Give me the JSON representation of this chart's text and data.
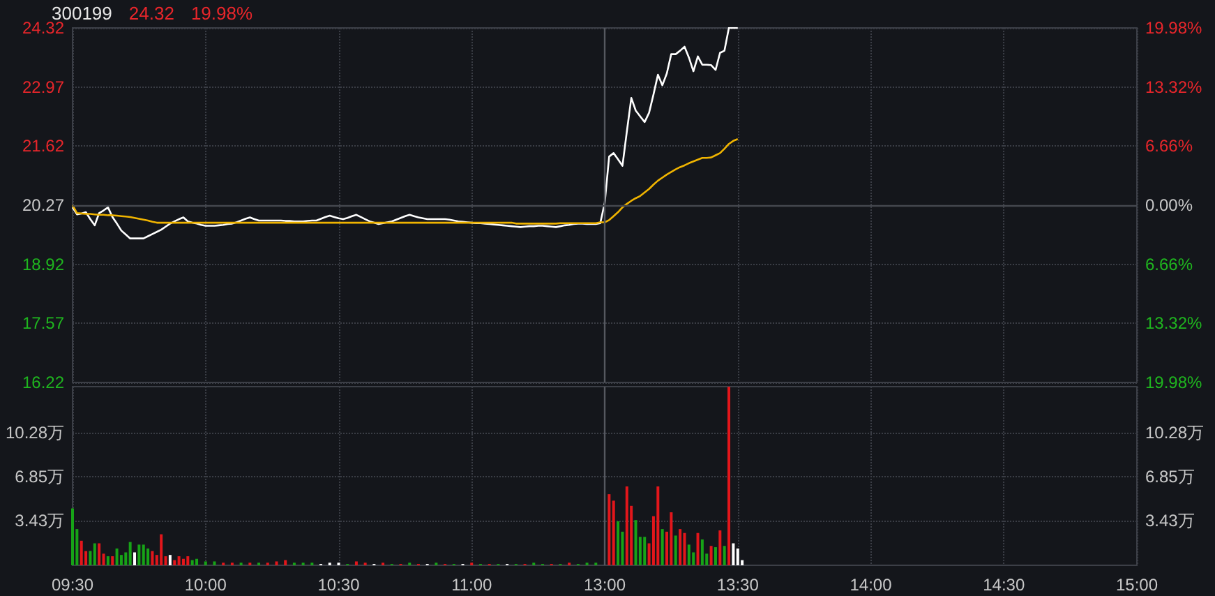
{
  "chart_data": [
    {
      "type": "line",
      "title": "300199",
      "annotations": [
        "24.32",
        "19.98%"
      ],
      "categories": [
        null,
        null,
        null,
        null,
        null,
        null,
        null,
        null,
        null,
        null,
        null,
        null,
        null,
        null,
        null,
        null,
        null,
        null,
        null,
        null,
        null,
        null,
        null,
        null,
        null,
        null,
        null,
        null,
        null,
        null,
        null,
        null,
        null,
        null,
        null,
        null,
        null,
        null,
        null,
        null,
        null,
        null,
        null,
        null,
        null,
        null,
        null,
        null,
        null,
        null,
        null,
        null,
        null,
        null,
        null,
        null,
        null,
        null,
        null,
        null,
        null,
        null,
        null,
        null,
        null,
        null,
        null,
        null,
        null,
        null,
        null,
        null,
        null,
        null,
        null,
        null,
        null,
        null,
        null,
        null,
        null,
        null,
        null,
        null,
        null,
        null,
        null,
        null,
        null,
        null,
        null,
        null,
        null,
        null,
        null,
        null,
        null,
        null,
        null,
        null,
        null,
        null,
        null,
        null,
        null,
        null,
        null,
        null,
        null,
        null,
        null,
        null,
        null,
        null,
        null,
        null,
        null,
        null,
        null,
        null,
        null,
        null,
        null,
        null,
        null,
        null,
        null,
        null,
        null,
        null,
        null,
        null,
        null,
        null,
        null,
        null,
        null,
        null,
        null,
        null,
        null,
        null,
        null,
        null,
        null,
        null,
        null,
        null,
        null,
        null,
        null,
        null,
        null,
        null,
        null,
        null,
        null,
        null,
        null,
        null,
        null,
        null,
        null,
        null,
        null,
        null,
        null,
        null,
        null,
        null,
        null,
        null,
        null,
        null,
        null,
        null,
        null,
        null,
        null,
        null,
        null,
        null,
        null,
        null,
        null,
        null,
        null,
        null,
        null,
        null,
        null,
        null,
        null,
        null,
        null,
        null,
        null,
        null,
        null,
        null,
        null,
        null,
        null,
        null,
        null,
        null,
        null,
        null,
        null,
        null,
        null,
        null,
        null,
        null,
        null,
        null,
        null,
        null,
        null,
        null,
        null,
        null,
        null,
        null,
        null,
        null,
        null,
        null,
        null,
        null,
        null,
        null,
        null,
        null,
        null,
        null,
        null,
        null,
        null,
        null,
        null
      ],
      "ylim": [
        16.22,
        24.32
      ],
      "yticks": [
        16.22,
        17.57,
        18.92,
        20.27,
        21.62,
        22.97,
        24.32
      ],
      "y2lim": [
        -19.98,
        19.98
      ],
      "y2ticks": [
        {
          "value": -19.98,
          "label": "19.98%"
        },
        {
          "value": -13.32,
          "label": "13.32%"
        },
        {
          "value": -6.66,
          "label": "6.66%"
        },
        {
          "value": 0,
          "label": "0.00%"
        },
        {
          "value": 6.66,
          "label": "6.66%"
        },
        {
          "value": 13.32,
          "label": "13.32%"
        },
        {
          "value": 19.98,
          "label": "19.98%"
        }
      ],
      "grid": true,
      "marker": "none",
      "ref_lines": [
        {
          "axis": "y",
          "value": 20.27,
          "color": "#44474e"
        }
      ],
      "series": [
        {
          "color": "#ffffff",
          "values": [
            20.22,
            20.06,
            20.08,
            20.11,
            19.95,
            19.81,
            20.09,
            20.15,
            20.22,
            20.0,
            19.85,
            19.69,
            19.6,
            19.51,
            19.51,
            19.51,
            19.51,
            19.56,
            19.61,
            19.66,
            19.71,
            19.78,
            19.85,
            19.9,
            19.95,
            19.99,
            19.9,
            19.87,
            19.85,
            19.82,
            19.8,
            19.8,
            19.8,
            19.81,
            19.82,
            19.84,
            19.85,
            19.88,
            19.92,
            19.96,
            19.99,
            19.95,
            19.92,
            19.92,
            19.92,
            19.92,
            19.92,
            19.92,
            19.91,
            19.91,
            19.9,
            19.9,
            19.9,
            19.91,
            19.92,
            19.92,
            19.96,
            20.0,
            20.03,
            20.0,
            19.97,
            19.95,
            19.98,
            20.02,
            20.05,
            20.0,
            19.95,
            19.9,
            19.87,
            19.84,
            19.86,
            19.88,
            19.9,
            19.94,
            19.98,
            20.02,
            20.05,
            20.02,
            19.99,
            19.97,
            19.95,
            19.95,
            19.95,
            19.95,
            19.95,
            19.94,
            19.92,
            19.9,
            19.89,
            19.88,
            19.87,
            19.86,
            19.86,
            19.85,
            19.84,
            19.83,
            19.82,
            19.81,
            19.8,
            19.79,
            19.78,
            19.77,
            19.78,
            19.79,
            19.79,
            19.8,
            19.8,
            19.79,
            19.78,
            19.77,
            19.79,
            19.81,
            19.82,
            19.84,
            19.85,
            19.85,
            19.84,
            19.84,
            19.84,
            19.86,
            20.32,
            21.38,
            21.46,
            21.32,
            21.17,
            21.96,
            22.72,
            22.43,
            22.3,
            22.17,
            22.38,
            22.8,
            23.25,
            23.01,
            23.28,
            23.72,
            23.72,
            23.8,
            23.89,
            23.64,
            23.33,
            23.67,
            23.48,
            23.48,
            23.47,
            23.36,
            23.75,
            23.8,
            24.32,
            24.32,
            24.32,
            null,
            null,
            null,
            null,
            null,
            null,
            null,
            null,
            null,
            null,
            null,
            null,
            null,
            null,
            null,
            null,
            null,
            null,
            null,
            null,
            null,
            null,
            null,
            null,
            null,
            null,
            null,
            null,
            null,
            null,
            null,
            null,
            null,
            null,
            null,
            null,
            null,
            null,
            null,
            null,
            null,
            null,
            null,
            null,
            null,
            null,
            null,
            null,
            null,
            null,
            null,
            null,
            null,
            null,
            null,
            null,
            null,
            null,
            null,
            null,
            null,
            null,
            null,
            null,
            null,
            null,
            null,
            null,
            null,
            null,
            null,
            null,
            null,
            null,
            null,
            null,
            null,
            null,
            null,
            null,
            null,
            null,
            null,
            null,
            null,
            null,
            null,
            null,
            null,
            null
          ]
        },
        {
          "color": "#f0b400",
          "values": [
            20.27,
            20.09,
            20.08,
            20.07,
            20.07,
            20.06,
            20.05,
            20.05,
            20.04,
            20.04,
            20.03,
            20.02,
            20.01,
            20.0,
            19.98,
            19.96,
            19.94,
            19.92,
            19.89,
            19.87,
            19.87,
            19.87,
            19.87,
            19.87,
            19.87,
            19.87,
            19.87,
            19.87,
            19.87,
            19.87,
            19.87,
            19.87,
            19.87,
            19.87,
            19.87,
            19.87,
            19.87,
            19.87,
            19.87,
            19.87,
            19.87,
            19.87,
            19.87,
            19.87,
            19.87,
            19.87,
            19.87,
            19.87,
            19.87,
            19.87,
            19.87,
            19.87,
            19.87,
            19.87,
            19.87,
            19.87,
            19.87,
            19.87,
            19.87,
            19.87,
            19.87,
            19.87,
            19.87,
            19.87,
            19.87,
            19.87,
            19.87,
            19.87,
            19.87,
            19.87,
            19.87,
            19.87,
            19.87,
            19.87,
            19.87,
            19.87,
            19.87,
            19.87,
            19.87,
            19.87,
            19.87,
            19.87,
            19.87,
            19.87,
            19.87,
            19.87,
            19.87,
            19.87,
            19.87,
            19.87,
            19.87,
            19.87,
            19.87,
            19.87,
            19.87,
            19.87,
            19.87,
            19.87,
            19.87,
            19.87,
            19.85,
            19.85,
            19.85,
            19.85,
            19.85,
            19.85,
            19.85,
            19.85,
            19.85,
            19.85,
            19.86,
            19.86,
            19.86,
            19.86,
            19.86,
            19.86,
            19.86,
            19.86,
            19.86,
            19.88,
            19.88,
            19.93,
            20.02,
            20.11,
            20.22,
            20.3,
            20.37,
            20.43,
            20.48,
            20.56,
            20.64,
            20.74,
            20.83,
            20.9,
            20.97,
            21.03,
            21.09,
            21.14,
            21.18,
            21.23,
            21.27,
            21.31,
            21.35,
            21.35,
            21.36,
            21.41,
            21.46,
            21.56,
            21.67,
            21.74,
            21.78,
            null,
            null,
            null,
            null,
            null,
            null,
            null,
            null,
            null,
            null,
            null,
            null,
            null,
            null,
            null,
            null,
            null,
            null,
            null,
            null,
            null,
            null,
            null,
            null,
            null,
            null,
            null,
            null,
            null,
            null,
            null,
            null,
            null,
            null,
            null,
            null,
            null,
            null,
            null,
            null,
            null,
            null,
            null,
            null,
            null,
            null,
            null,
            null,
            null,
            null,
            null,
            null,
            null,
            null,
            null,
            null,
            null,
            null,
            null,
            null,
            null,
            null,
            null,
            null,
            null,
            null,
            null,
            null,
            null,
            null,
            null,
            null,
            null,
            null,
            null,
            null,
            null,
            null,
            null,
            null,
            null,
            null,
            null,
            null,
            null,
            null,
            null,
            null,
            null,
            null
          ]
        }
      ]
    },
    {
      "type": "bar",
      "categories": [
        "09:30",
        null,
        null,
        null,
        null,
        null,
        null,
        null,
        null,
        null,
        null,
        null,
        null,
        null,
        null,
        null,
        null,
        null,
        null,
        null,
        null,
        null,
        null,
        null,
        null,
        null,
        null,
        null,
        null,
        null,
        "10:00",
        null,
        null,
        null,
        null,
        null,
        null,
        null,
        null,
        null,
        null,
        null,
        null,
        null,
        null,
        null,
        null,
        null,
        null,
        null,
        null,
        null,
        null,
        null,
        null,
        null,
        null,
        null,
        null,
        null,
        "10:30",
        null,
        null,
        null,
        null,
        null,
        null,
        null,
        null,
        null,
        null,
        null,
        null,
        null,
        null,
        null,
        null,
        null,
        null,
        null,
        null,
        null,
        null,
        null,
        null,
        null,
        null,
        null,
        null,
        null,
        "11:00",
        null,
        null,
        null,
        null,
        null,
        null,
        null,
        null,
        null,
        null,
        null,
        null,
        null,
        null,
        null,
        null,
        null,
        null,
        null,
        null,
        null,
        null,
        null,
        null,
        null,
        null,
        null,
        null,
        null,
        "13:00",
        null,
        null,
        null,
        null,
        null,
        null,
        null,
        null,
        null,
        null,
        null,
        null,
        null,
        null,
        null,
        null,
        null,
        null,
        null,
        null,
        null,
        null,
        null,
        null,
        null,
        null,
        null,
        null,
        null,
        "13:30",
        null,
        null,
        null,
        null,
        null,
        null,
        null,
        null,
        null,
        null,
        null,
        null,
        null,
        null,
        null,
        null,
        null,
        null,
        null,
        null,
        null,
        null,
        null,
        null,
        null,
        null,
        null,
        null,
        null,
        "14:00",
        null,
        null,
        null,
        null,
        null,
        null,
        null,
        null,
        null,
        null,
        null,
        null,
        null,
        null,
        null,
        null,
        null,
        null,
        null,
        null,
        null,
        null,
        null,
        null,
        null,
        null,
        null,
        null,
        null,
        "14:30",
        null,
        null,
        null,
        null,
        null,
        null,
        null,
        null,
        null,
        null,
        null,
        null,
        null,
        null,
        null,
        null,
        null,
        null,
        null,
        null,
        null,
        null,
        null,
        null,
        null,
        null,
        null,
        null,
        null,
        "15:00"
      ],
      "ylim": [
        0,
        13.82
      ],
      "yticks": [
        {
          "value": 3.43,
          "label": "3.43万"
        },
        {
          "value": 6.85,
          "label": "6.85万"
        },
        {
          "value": 10.28,
          "label": "10.28万"
        }
      ],
      "y2lim": [
        0,
        13.82
      ],
      "y2ticks": [
        {
          "value": 3.43,
          "label": "3.43万"
        },
        {
          "value": 6.85,
          "label": "6.85万"
        },
        {
          "value": 10.28,
          "label": "10.28万"
        }
      ],
      "grid": true,
      "ref_lines": [
        {
          "axis": "x",
          "value": "13:00",
          "color": "#55585f"
        }
      ],
      "values": [
        4.4,
        2.8,
        1.9,
        1.1,
        1.1,
        1.7,
        1.7,
        0.9,
        0.7,
        0.7,
        1.3,
        0.8,
        1.0,
        1.8,
        1.0,
        1.6,
        1.6,
        1.3,
        1.1,
        0.8,
        2.4,
        0.7,
        0.8,
        0.4,
        0.7,
        0.5,
        0.7,
        0.4,
        0.5,
        null,
        0.3,
        null,
        0.3,
        null,
        0.2,
        null,
        0.2,
        null,
        0.2,
        null,
        0.2,
        null,
        0.2,
        null,
        0.2,
        null,
        0.3,
        null,
        0.4,
        null,
        0.2,
        null,
        0.2,
        null,
        0.2,
        null,
        0.1,
        null,
        0.2,
        null,
        0.2,
        null,
        0.1,
        null,
        0.3,
        null,
        0.2,
        null,
        0.1,
        null,
        0.2,
        null,
        0.1,
        null,
        0.1,
        null,
        0.2,
        null,
        0.1,
        null,
        0.1,
        null,
        0.2,
        null,
        0.1,
        null,
        0.1,
        null,
        0.1,
        null,
        0.2,
        null,
        0.1,
        null,
        0.1,
        null,
        0.1,
        null,
        0.1,
        null,
        0.1,
        null,
        0.1,
        null,
        0.2,
        null,
        0.1,
        null,
        0.1,
        null,
        0.1,
        null,
        0.2,
        null,
        0.1,
        null,
        0.2,
        null,
        0.2,
        null,
        null,
        5.5,
        5.0,
        3.4,
        2.6,
        6.1,
        4.6,
        3.5,
        2.2,
        2.2,
        1.7,
        3.8,
        6.1,
        2.8,
        2.6,
        4.1,
        2.3,
        2.8,
        2.5,
        1.6,
        1.0,
        2.5,
        2.0,
        0.9,
        1.5,
        1.4,
        2.7,
        1.5,
        13.8,
        1.7,
        1.3,
        0.4,
        null,
        null,
        null,
        null,
        null,
        null,
        null,
        null,
        null,
        null,
        null,
        null,
        null,
        null,
        null,
        null,
        null,
        null,
        null,
        null,
        null,
        null,
        null,
        null,
        null,
        null,
        null,
        null,
        null,
        null,
        null,
        null,
        null,
        null,
        null,
        null,
        null,
        null,
        null,
        null,
        null,
        null,
        null,
        null,
        null,
        null,
        null,
        null,
        null,
        null,
        null,
        null,
        null,
        null,
        null,
        null,
        null,
        null,
        null,
        null,
        null,
        null,
        null,
        null,
        null,
        null,
        null,
        null,
        null,
        null,
        null,
        null,
        null,
        null,
        null,
        null,
        null,
        null,
        null,
        null,
        null,
        null,
        null,
        null,
        null,
        null,
        null,
        null,
        null
      ],
      "colors": [
        "#17a317",
        "#17a317",
        "#e3161b",
        "#e3161b",
        "#17a317",
        "#17a317",
        "#e3161b",
        "#e3161b",
        "#17a317",
        "#e3161b",
        "#17a317",
        "#17a317",
        "#17a317",
        "#17a317",
        "#ffffff",
        "#17a317",
        "#17a317",
        "#17a317",
        "#e3161b",
        "#e3161b",
        "#e3161b",
        "#e3161b",
        "#ffffff",
        "#e3161b",
        "#e3161b",
        "#e3161b",
        "#e3161b",
        "#17a317",
        "#17a317",
        null,
        "#17a317",
        null,
        "#17a317",
        null,
        "#e3161b",
        null,
        "#e3161b",
        null,
        "#17a317",
        null,
        "#e3161b",
        null,
        "#17a317",
        null,
        "#e3161b",
        null,
        "#e3161b",
        null,
        "#e3161b",
        null,
        "#17a317",
        null,
        "#17a317",
        null,
        "#17a317",
        null,
        "#ffffff",
        null,
        "#ffffff",
        null,
        "#ffffff",
        null,
        "#17a317",
        null,
        "#e3161b",
        null,
        "#e3161b",
        null,
        "#ffffff",
        null,
        "#e3161b",
        null,
        "#17a317",
        null,
        "#e3161b",
        null,
        "#17a317",
        null,
        "#e3161b",
        null,
        "#ffffff",
        null,
        "#17a317",
        null,
        "#e3161b",
        null,
        "#17a317",
        null,
        "#ffffff",
        null,
        "#e3161b",
        null,
        "#17a317",
        null,
        "#e3161b",
        null,
        "#17a317",
        null,
        "#ffffff",
        null,
        "#17a317",
        null,
        "#e3161b",
        null,
        "#17a317",
        null,
        "#17a317",
        null,
        "#e3161b",
        null,
        "#17a317",
        null,
        "#e3161b",
        null,
        "#17a317",
        null,
        "#17a317",
        null,
        "#17a317",
        null,
        null,
        "#e3161b",
        "#e3161b",
        "#17a317",
        "#17a317",
        "#e3161b",
        "#e3161b",
        "#17a317",
        "#17a317",
        "#17a317",
        "#e3161b",
        "#e3161b",
        "#e3161b",
        "#17a317",
        "#e3161b",
        "#e3161b",
        "#17a317",
        "#e3161b",
        "#e3161b",
        "#17a317",
        "#17a317",
        "#e3161b",
        "#17a317",
        "#17a317",
        "#e3161b",
        "#17a317",
        "#e3161b",
        "#17a317",
        "#e3161b",
        "#ffffff",
        "#ffffff",
        "#ffffff",
        null,
        null,
        null,
        null,
        null,
        null,
        null,
        null,
        null,
        null,
        null,
        null,
        null,
        null,
        null,
        null,
        null,
        null,
        null,
        null,
        null,
        null,
        null,
        null,
        null,
        null,
        null,
        null,
        null,
        null,
        null,
        null,
        null,
        null,
        null,
        null,
        null,
        null,
        null,
        null,
        null,
        null,
        null,
        null,
        null,
        null,
        null,
        null,
        null,
        null,
        null,
        null,
        null,
        null,
        null,
        null,
        null,
        null,
        null,
        null,
        null,
        null,
        null,
        null,
        null,
        null,
        null,
        null,
        null,
        null,
        null,
        null,
        null,
        null,
        null,
        null,
        null,
        null,
        null,
        null,
        null,
        null,
        null,
        null,
        null,
        null,
        null,
        null,
        null
      ]
    }
  ]
}
